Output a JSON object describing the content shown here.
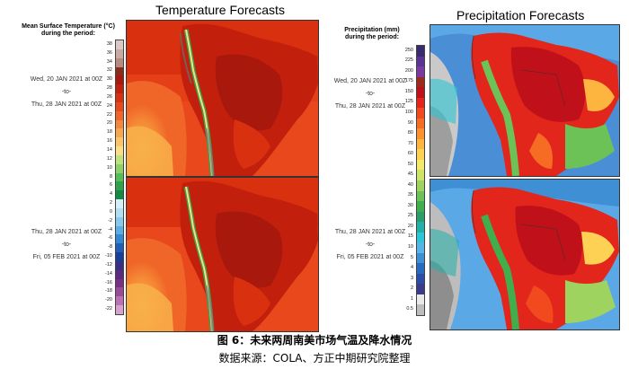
{
  "temperature": {
    "title": "Temperature Forecasts",
    "legend_title": "Mean Surface Temperature (°C)",
    "legend_sub": "during the period:",
    "ticks": [
      "38",
      "36",
      "34",
      "32",
      "30",
      "28",
      "26",
      "24",
      "22",
      "20",
      "18",
      "16",
      "14",
      "12",
      "10",
      "8",
      "6",
      "4",
      "2",
      "0",
      "-2",
      "-4",
      "-6",
      "-8",
      "-10",
      "-12",
      "-14",
      "-16",
      "-18",
      "-20",
      "-22"
    ],
    "colors": [
      "#d9c8c4",
      "#c9a9a2",
      "#b88a7f",
      "#8a2b1c",
      "#a8180c",
      "#c2200d",
      "#d9300f",
      "#e8481b",
      "#f06628",
      "#f5873a",
      "#f8a64d",
      "#fbc466",
      "#fddc84",
      "#bfe07a",
      "#8cd06a",
      "#55bd58",
      "#2fa14a",
      "#138a42",
      "#d6eef5",
      "#b1def0",
      "#88c9ea",
      "#5aaee2",
      "#3289d3",
      "#1f5fb8",
      "#1a3f9a",
      "#3a2f85",
      "#5b2a80",
      "#7a2f85",
      "#9b4a98",
      "#bb70b2",
      "#d8a0cc"
    ]
  },
  "precipitation": {
    "title": "Precipitation Forecasts",
    "legend_title": "Precipitation (mm)",
    "legend_sub": "during the period:",
    "ticks": [
      "250",
      "225",
      "200",
      "175",
      "150",
      "125",
      "100",
      "90",
      "80",
      "70",
      "60",
      "50",
      "45",
      "40",
      "35",
      "30",
      "25",
      "20",
      "15",
      "10",
      "5",
      "4",
      "3",
      "2",
      "1",
      "0.5"
    ],
    "colors": [
      "#3a2a6e",
      "#5a3490",
      "#7a3b9e",
      "#9c2a1e",
      "#c0101a",
      "#e2261c",
      "#f04a1e",
      "#f76c25",
      "#fb922f",
      "#fdb53f",
      "#fdd254",
      "#f5e96a",
      "#cde36a",
      "#9ed35f",
      "#6cc157",
      "#41ae4d",
      "#2c9d6a",
      "#22b0a7",
      "#2cc7d6",
      "#56b5e6",
      "#3e8fd3",
      "#276ac0",
      "#2a4da6",
      "#3c3a8a",
      "#e9e9e9",
      "#bdbdbd"
    ]
  },
  "periods": [
    {
      "from": "Wed, 20 JAN 2021 at 00Z",
      "to_label": "-to-",
      "to": "Thu, 28 JAN 2021 at 00Z"
    },
    {
      "from": "Thu, 28 JAN 2021 at 00Z",
      "to_label": "-to-",
      "to": "Fri, 05 FEB 2021 at 00Z"
    }
  ],
  "caption": {
    "title": "图 6：未来两周南美市场气温及降水情况",
    "source": "数据来源：COLA、方正中期研究院整理"
  }
}
